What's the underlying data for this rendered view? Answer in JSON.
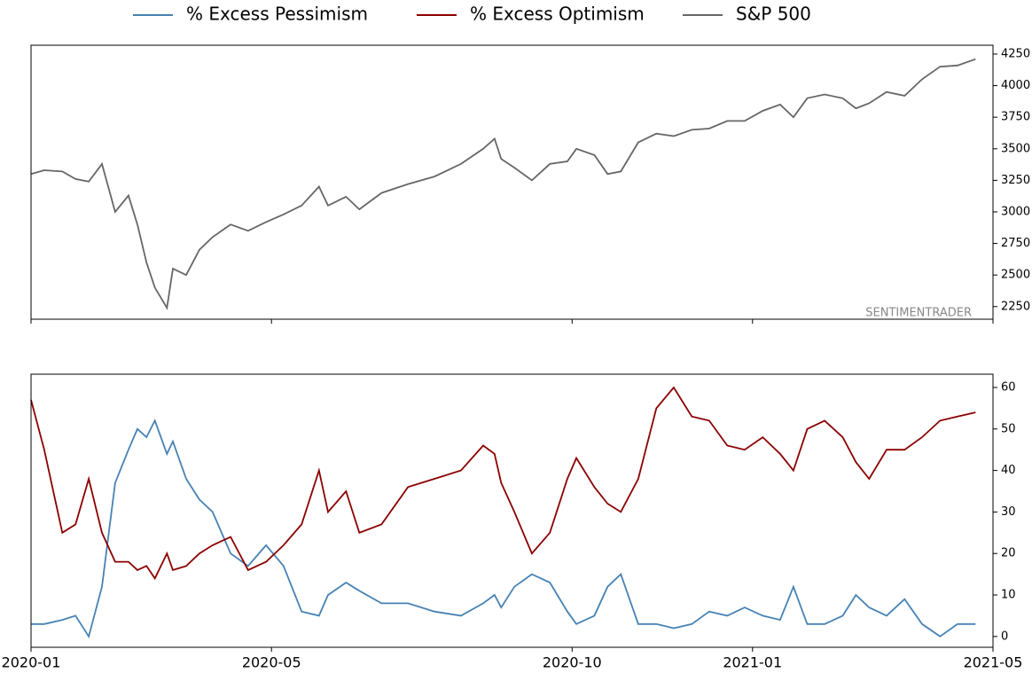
{
  "chart_data": [
    {
      "type": "line",
      "annotation": "SENTIMENTRADER",
      "x": [
        0,
        0.22,
        0.52,
        0.74,
        0.96,
        1.18,
        1.4,
        1.62,
        1.77,
        1.92,
        2.06,
        2.26,
        2.36,
        2.58,
        2.8,
        3.02,
        3.32,
        3.61,
        3.91,
        4.2,
        4.5,
        4.79,
        4.94,
        5.24,
        5.46,
        5.83,
        6.27,
        6.71,
        7.15,
        7.52,
        7.71,
        7.82,
        8.04,
        8.33,
        8.63,
        8.92,
        9.07,
        9.37,
        9.59,
        9.81,
        10.1,
        10.4,
        10.69,
        10.99,
        11.28,
        11.58,
        11.87,
        12.17,
        12.46,
        12.68,
        12.91,
        13.2,
        13.5,
        13.72,
        13.94,
        14.23,
        14.53,
        14.82,
        15.12,
        15.41,
        15.71
      ],
      "series": [
        {
          "name": "S&P 500",
          "color": "#666666",
          "values": [
            3300,
            3330,
            3320,
            3260,
            3240,
            3380,
            3000,
            3130,
            2900,
            2600,
            2400,
            2240,
            2550,
            2500,
            2700,
            2800,
            2900,
            2850,
            2920,
            2980,
            3050,
            3200,
            3050,
            3120,
            3020,
            3150,
            3220,
            3280,
            3380,
            3500,
            3580,
            3420,
            3350,
            3250,
            3380,
            3400,
            3500,
            3450,
            3300,
            3320,
            3550,
            3620,
            3600,
            3650,
            3660,
            3720,
            3720,
            3800,
            3850,
            3750,
            3900,
            3930,
            3900,
            3820,
            3860,
            3950,
            3920,
            4050,
            4150,
            4160,
            4210
          ]
        }
      ],
      "xlim": [
        0,
        16
      ],
      "ylim": [
        2150,
        4320
      ],
      "yticks": [
        2250,
        2500,
        2750,
        3000,
        3250,
        3500,
        3750,
        4000,
        4250
      ]
    },
    {
      "type": "line",
      "x": [
        0,
        0.22,
        0.52,
        0.74,
        0.96,
        1.18,
        1.4,
        1.62,
        1.77,
        1.92,
        2.06,
        2.26,
        2.36,
        2.58,
        2.8,
        3.02,
        3.32,
        3.61,
        3.91,
        4.2,
        4.5,
        4.79,
        4.94,
        5.24,
        5.46,
        5.83,
        6.27,
        6.71,
        7.15,
        7.52,
        7.71,
        7.82,
        8.04,
        8.33,
        8.63,
        8.92,
        9.07,
        9.37,
        9.59,
        9.81,
        10.1,
        10.4,
        10.69,
        10.99,
        11.28,
        11.58,
        11.87,
        12.17,
        12.46,
        12.68,
        12.91,
        13.2,
        13.5,
        13.72,
        13.94,
        14.23,
        14.53,
        14.82,
        15.12,
        15.41,
        15.71
      ],
      "series": [
        {
          "name": "% Excess Pessimism",
          "color": "#4682b4",
          "values": [
            3,
            3,
            4,
            5,
            0,
            12,
            37,
            45,
            50,
            48,
            52,
            44,
            47,
            38,
            33,
            30,
            20,
            17,
            22,
            17,
            6,
            5,
            10,
            13,
            11,
            8,
            8,
            6,
            5,
            8,
            10,
            7,
            12,
            15,
            13,
            6,
            3,
            5,
            12,
            15,
            3,
            3,
            2,
            3,
            6,
            5,
            7,
            5,
            4,
            12,
            3,
            3,
            5,
            10,
            7,
            5,
            9,
            3,
            0,
            3,
            3
          ]
        },
        {
          "name": "% Excess Optimism",
          "color": "#8b0000",
          "values": [
            57,
            45,
            25,
            27,
            38,
            25,
            18,
            18,
            16,
            17,
            14,
            20,
            16,
            17,
            20,
            22,
            24,
            16,
            18,
            22,
            27,
            40,
            30,
            35,
            25,
            27,
            36,
            38,
            40,
            46,
            44,
            37,
            30,
            20,
            25,
            38,
            43,
            36,
            32,
            30,
            38,
            55,
            60,
            53,
            52,
            46,
            45,
            48,
            44,
            40,
            50,
            52,
            48,
            42,
            38,
            45,
            45,
            48,
            52,
            53,
            54
          ]
        }
      ],
      "xlim": [
        0,
        16
      ],
      "xticks": [
        {
          "value": 0,
          "label": "2020-01"
        },
        {
          "value": 4,
          "label": "2020-05"
        },
        {
          "value": 9,
          "label": "2020-10"
        },
        {
          "value": 12,
          "label": "2021-01"
        },
        {
          "value": 16,
          "label": "2021-05"
        }
      ],
      "ylim": [
        -2.6,
        63.2
      ],
      "yticks": [
        0,
        10,
        20,
        30,
        40,
        50,
        60
      ]
    }
  ]
}
